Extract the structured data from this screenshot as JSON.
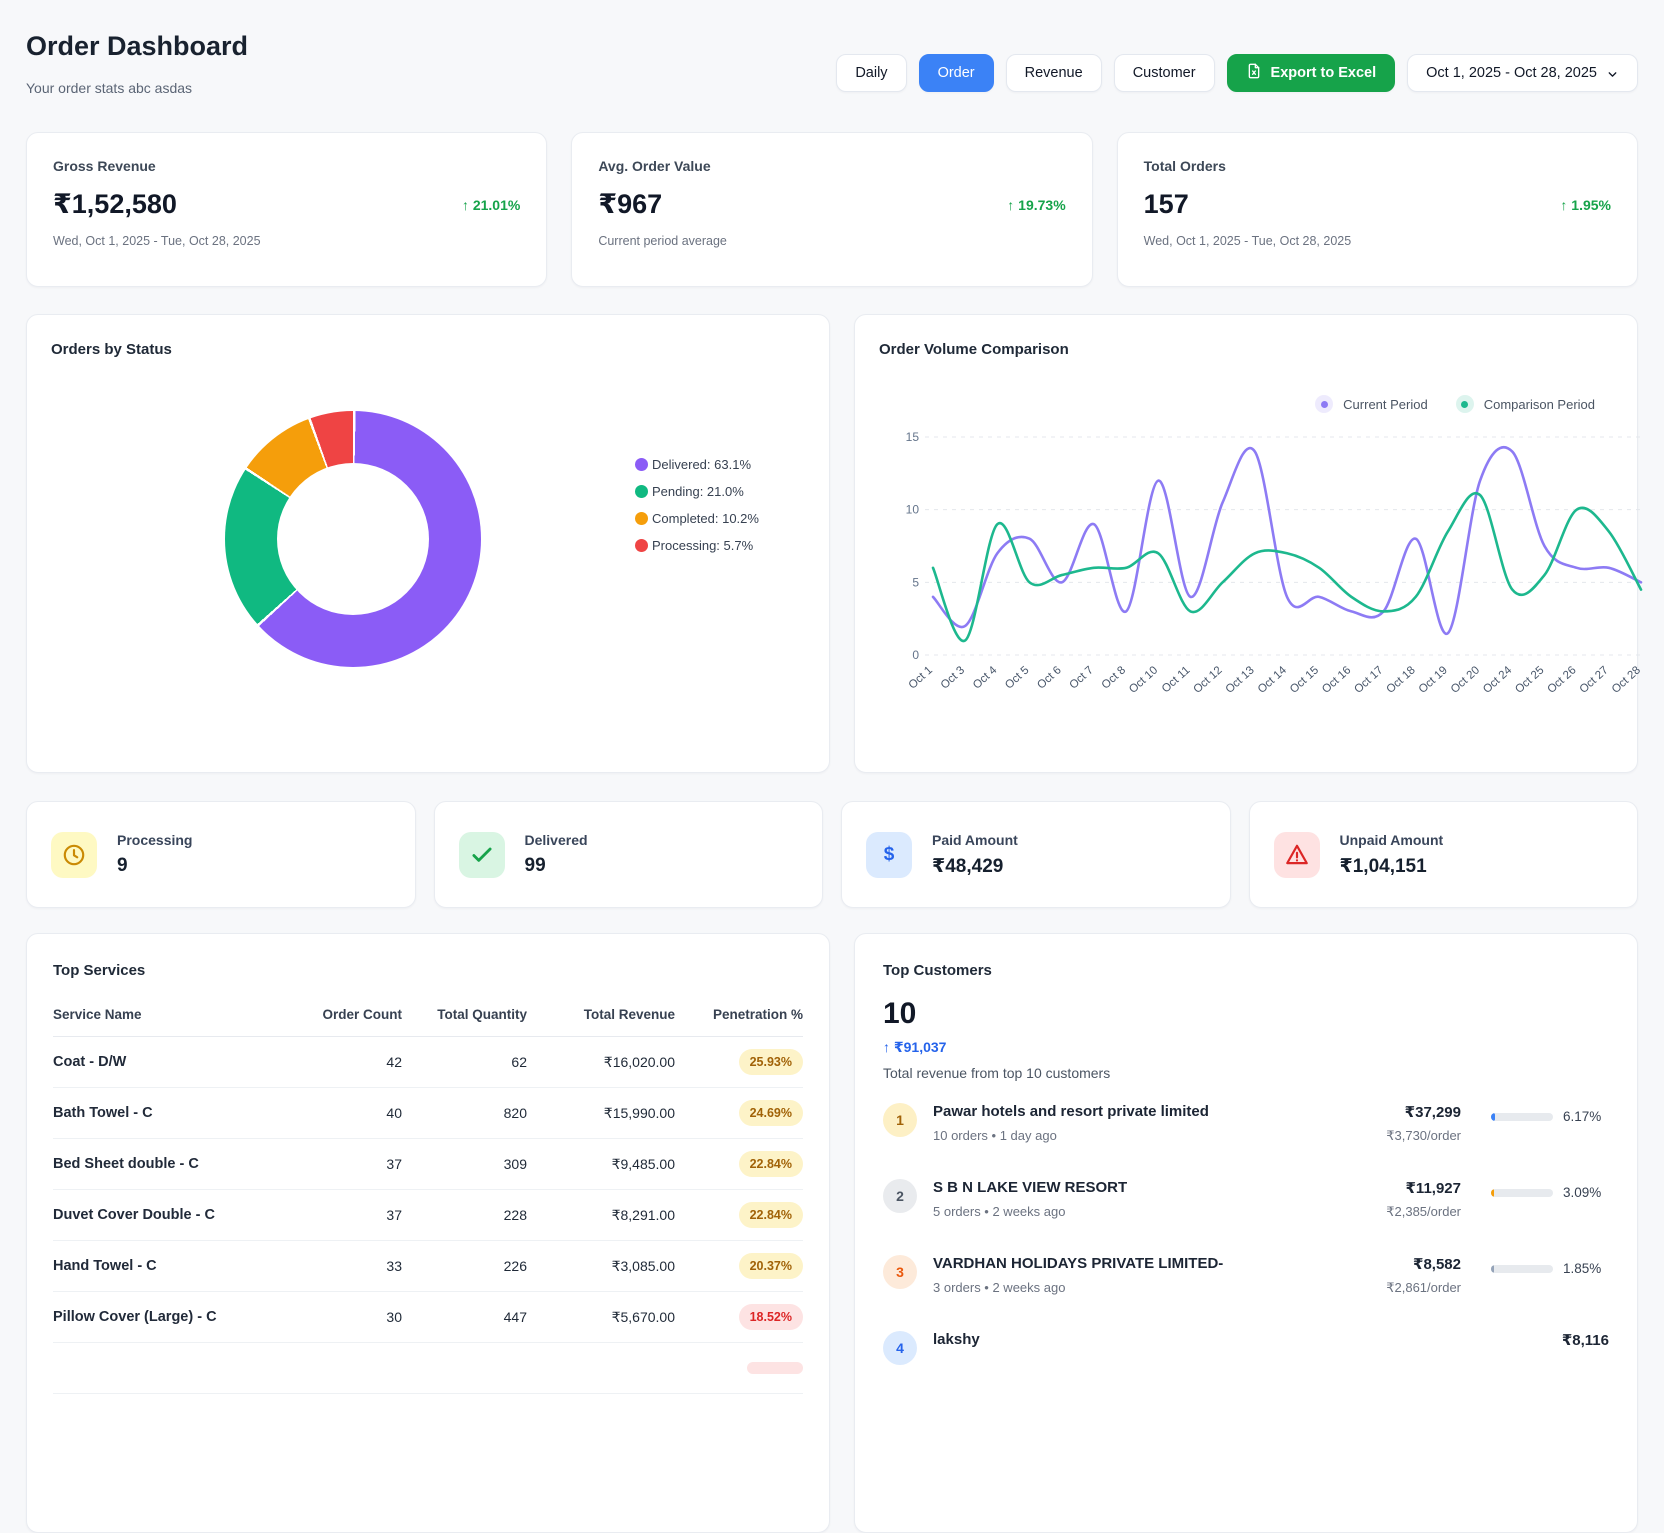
{
  "header": {
    "title": "Order Dashboard",
    "subtitle": "Your order stats abc asdas",
    "tabs": [
      {
        "label": "Daily",
        "active": false
      },
      {
        "label": "Order",
        "active": true
      },
      {
        "label": "Revenue",
        "active": false
      },
      {
        "label": "Customer",
        "active": false
      }
    ],
    "export_label": "Export to Excel",
    "date_range": "Oct 1, 2025 - Oct 28, 2025"
  },
  "kpis": [
    {
      "label": "Gross Revenue",
      "value": "₹1,52,580",
      "change": "↑ 21.01%",
      "sub": "Wed, Oct 1, 2025 - Tue, Oct 28, 2025"
    },
    {
      "label": "Avg. Order Value",
      "value": "₹967",
      "change": "↑ 19.73%",
      "sub": "Current period average"
    },
    {
      "label": "Total Orders",
      "value": "157",
      "change": "↑ 1.95%",
      "sub": "Wed, Oct 1, 2025 - Tue, Oct 28, 2025"
    }
  ],
  "chart_data": [
    {
      "type": "pie",
      "title": "Orders by Status",
      "labels": [
        "Delivered",
        "Pending",
        "Completed",
        "Processing"
      ],
      "values": [
        63.1,
        21.0,
        10.2,
        5.7
      ],
      "colors": [
        "#8b5cf6",
        "#10b981",
        "#f59e0b",
        "#ef4444"
      ],
      "legend_labels": [
        "Delivered: 63.1%",
        "Pending: 21.0%",
        "Completed: 10.2%",
        "Processing: 5.7%"
      ],
      "legend_position": "right",
      "donut": true
    },
    {
      "type": "line",
      "title": "Order Volume Comparison",
      "x": [
        "Oct 1",
        "Oct 3",
        "Oct 4",
        "Oct 5",
        "Oct 6",
        "Oct 7",
        "Oct 8",
        "Oct 10",
        "Oct 11",
        "Oct 12",
        "Oct 13",
        "Oct 14",
        "Oct 15",
        "Oct 16",
        "Oct 17",
        "Oct 18",
        "Oct 19",
        "Oct 20",
        "Oct 24",
        "Oct 25",
        "Oct 26",
        "Oct 27",
        "Oct 28"
      ],
      "series": [
        {
          "name": "Current Period",
          "color": "#8d7bf4",
          "values": [
            4,
            2,
            7,
            8,
            5,
            9,
            3,
            12,
            4,
            10.5,
            14,
            4,
            4,
            3,
            3,
            8,
            1.5,
            12,
            14,
            7.5,
            6,
            6,
            5
          ]
        },
        {
          "name": "Comparison Period",
          "color": "#1db88e",
          "values": [
            6,
            1,
            9,
            5,
            5.5,
            6,
            6,
            7,
            3,
            5,
            7,
            7,
            6,
            4,
            3,
            4,
            8.5,
            11,
            4.5,
            5.5,
            10,
            8.5,
            4.5
          ]
        }
      ],
      "ylim": [
        0,
        15
      ],
      "yticks": [
        0,
        5,
        10,
        15
      ],
      "grid": true,
      "legend_position": "top-right"
    }
  ],
  "status_cards": [
    {
      "label": "Processing",
      "value": "9",
      "icon": "clock",
      "tone": "yellow"
    },
    {
      "label": "Delivered",
      "value": "99",
      "icon": "check",
      "tone": "green"
    },
    {
      "label": "Paid Amount",
      "value": "₹48,429",
      "icon": "dollar",
      "tone": "blue"
    },
    {
      "label": "Unpaid Amount",
      "value": "₹1,04,151",
      "icon": "alert",
      "tone": "red"
    }
  ],
  "top_services": {
    "title": "Top Services",
    "columns": [
      "Service Name",
      "Order Count",
      "Total Quantity",
      "Total Revenue",
      "Penetration %"
    ],
    "rows": [
      {
        "name": "Coat - D/W",
        "orders": "42",
        "qty": "62",
        "revenue": "₹16,020.00",
        "pen": "25.93%",
        "tone": "yellow"
      },
      {
        "name": "Bath Towel - C",
        "orders": "40",
        "qty": "820",
        "revenue": "₹15,990.00",
        "pen": "24.69%",
        "tone": "yellow"
      },
      {
        "name": "Bed Sheet double - C",
        "orders": "37",
        "qty": "309",
        "revenue": "₹9,485.00",
        "pen": "22.84%",
        "tone": "yellow"
      },
      {
        "name": "Duvet Cover Double - C",
        "orders": "37",
        "qty": "228",
        "revenue": "₹8,291.00",
        "pen": "22.84%",
        "tone": "yellow"
      },
      {
        "name": "Hand Towel - C",
        "orders": "33",
        "qty": "226",
        "revenue": "₹3,085.00",
        "pen": "20.37%",
        "tone": "yellow"
      },
      {
        "name": "Pillow Cover (Large) - C",
        "orders": "30",
        "qty": "447",
        "revenue": "₹5,670.00",
        "pen": "18.52%",
        "tone": "pink"
      },
      {
        "name": "",
        "orders": "",
        "qty": "",
        "revenue": "",
        "pen": "",
        "tone": "pink"
      }
    ]
  },
  "top_customers": {
    "title": "Top Customers",
    "count": "10",
    "total_change": "↑ ₹91,037",
    "subtitle": "Total revenue from top 10 customers",
    "rows": [
      {
        "rank": "1",
        "rank_tone": "gold",
        "name": "Pawar hotels and resort private limited",
        "meta": "10 orders  •  1 day ago",
        "amount": "₹37,299",
        "per_order": "₹3,730/order",
        "percent": "6.17%",
        "bar_color": "#3b82f6"
      },
      {
        "rank": "2",
        "rank_tone": "silver",
        "name": "S B N LAKE VIEW RESORT",
        "meta": "5 orders  •  2 weeks ago",
        "amount": "₹11,927",
        "per_order": "₹2,385/order",
        "percent": "3.09%",
        "bar_color": "#f59e0b"
      },
      {
        "rank": "3",
        "rank_tone": "bronze",
        "name": "VARDHAN HOLIDAYS PRIVATE LIMITED-",
        "meta": "3 orders  •  2 weeks ago",
        "amount": "₹8,582",
        "per_order": "₹2,861/order",
        "percent": "1.85%",
        "bar_color": "#94a3b8"
      },
      {
        "rank": "4",
        "rank_tone": "blue",
        "name": "lakshy",
        "meta": "",
        "amount": "₹8,116",
        "per_order": "",
        "percent": "",
        "bar_color": ""
      }
    ]
  }
}
